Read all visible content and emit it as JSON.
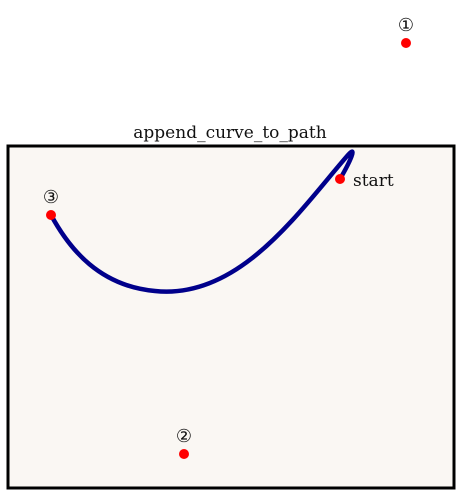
{
  "figure": {
    "title": "append_curve_to_path",
    "colors": {
      "frame_fill": "#faf7f3",
      "frame_stroke": "#000000",
      "curve": "#00008b",
      "point": "#ff0000",
      "text": "#111111"
    }
  },
  "labels": {
    "start": "start",
    "point_1": "①",
    "point_2": "②",
    "point_3": "③"
  }
}
